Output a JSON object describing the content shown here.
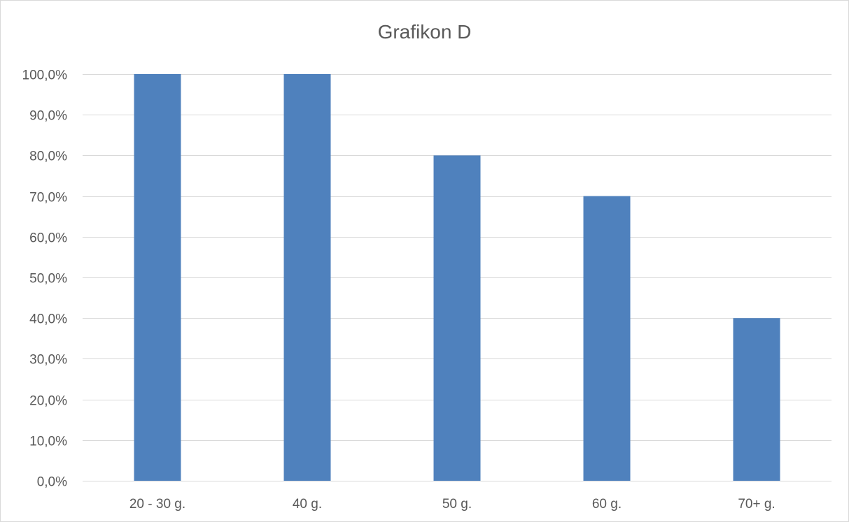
{
  "chart_data": {
    "type": "bar",
    "title": "Grafikon D",
    "xlabel": "",
    "ylabel": "",
    "categories": [
      "20 - 30 g.",
      "40 g.",
      "50 g.",
      "60 g.",
      "70+ g."
    ],
    "values": [
      100.0,
      100.0,
      80.0,
      70.0,
      40.0
    ],
    "ylim": [
      0,
      100
    ],
    "yticks": [
      0,
      10,
      20,
      30,
      40,
      50,
      60,
      70,
      80,
      90,
      100
    ],
    "ytick_labels": [
      "0,0%",
      "10,0%",
      "20,0%",
      "30,0%",
      "40,0%",
      "50,0%",
      "60,0%",
      "70,0%",
      "80,0%",
      "90,0%",
      "100,0%"
    ],
    "grid": true,
    "legend": "none",
    "bar_color": "#4f81bd",
    "grid_color": "#d9d9d9"
  }
}
